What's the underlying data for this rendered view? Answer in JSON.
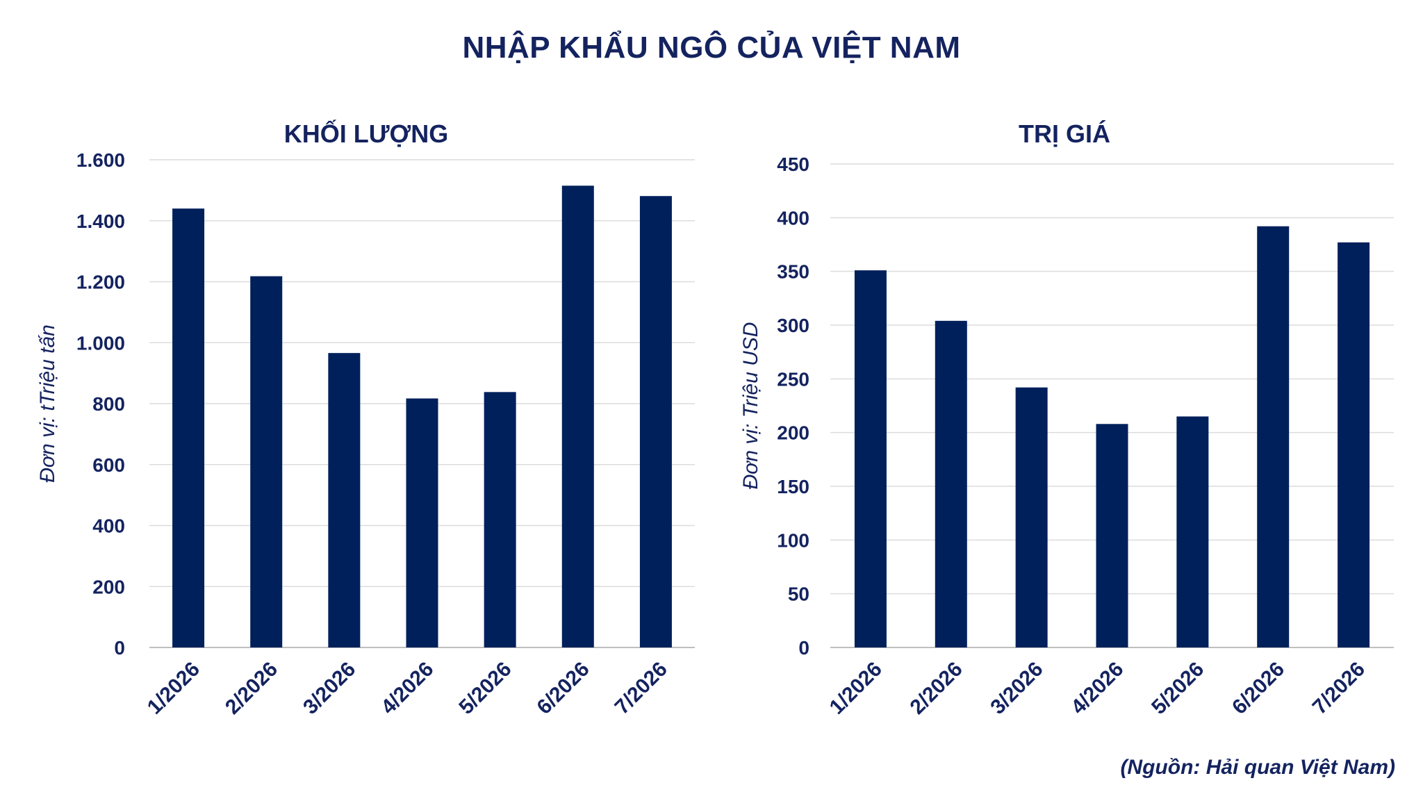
{
  "title": "NHẬP KHẨU NGÔ CỦA VIỆT NAM",
  "source": "(Nguồn: Hải quan Việt Nam)",
  "colors": {
    "bar": "#00205b",
    "text": "#14235f"
  },
  "chart_data": [
    {
      "type": "bar",
      "title": "KHỐI LƯỢNG",
      "ylabel": "Đơn vị: tTriệu tấn",
      "xlabel": "",
      "categories": [
        "1/2026",
        "2/2026",
        "3/2026",
        "4/2026",
        "5/2026",
        "6/2026",
        "7/2026"
      ],
      "values": [
        1440,
        1218,
        966,
        817,
        838,
        1515,
        1481
      ],
      "ylim": [
        0,
        1600
      ],
      "yticks": [
        0,
        200,
        400,
        600,
        800,
        1000,
        1200,
        1400,
        1600
      ],
      "ytick_labels": [
        "0",
        "200",
        "400",
        "600",
        "800",
        "1.000",
        "1.200",
        "1.400",
        "1.600"
      ],
      "grid": true
    },
    {
      "type": "bar",
      "title": "TRỊ GIÁ",
      "ylabel": "Đơn vị: Triệu USD",
      "xlabel": "",
      "categories": [
        "1/2026",
        "2/2026",
        "3/2026",
        "4/2026",
        "5/2026",
        "6/2026",
        "7/2026"
      ],
      "values": [
        351,
        304,
        242,
        208,
        215,
        392,
        377
      ],
      "ylim": [
        0,
        450
      ],
      "yticks": [
        0,
        50,
        100,
        150,
        200,
        250,
        300,
        350,
        400,
        450
      ],
      "ytick_labels": [
        "0",
        "50",
        "100",
        "150",
        "200",
        "250",
        "300",
        "350",
        "400",
        "450"
      ],
      "grid": true
    }
  ]
}
